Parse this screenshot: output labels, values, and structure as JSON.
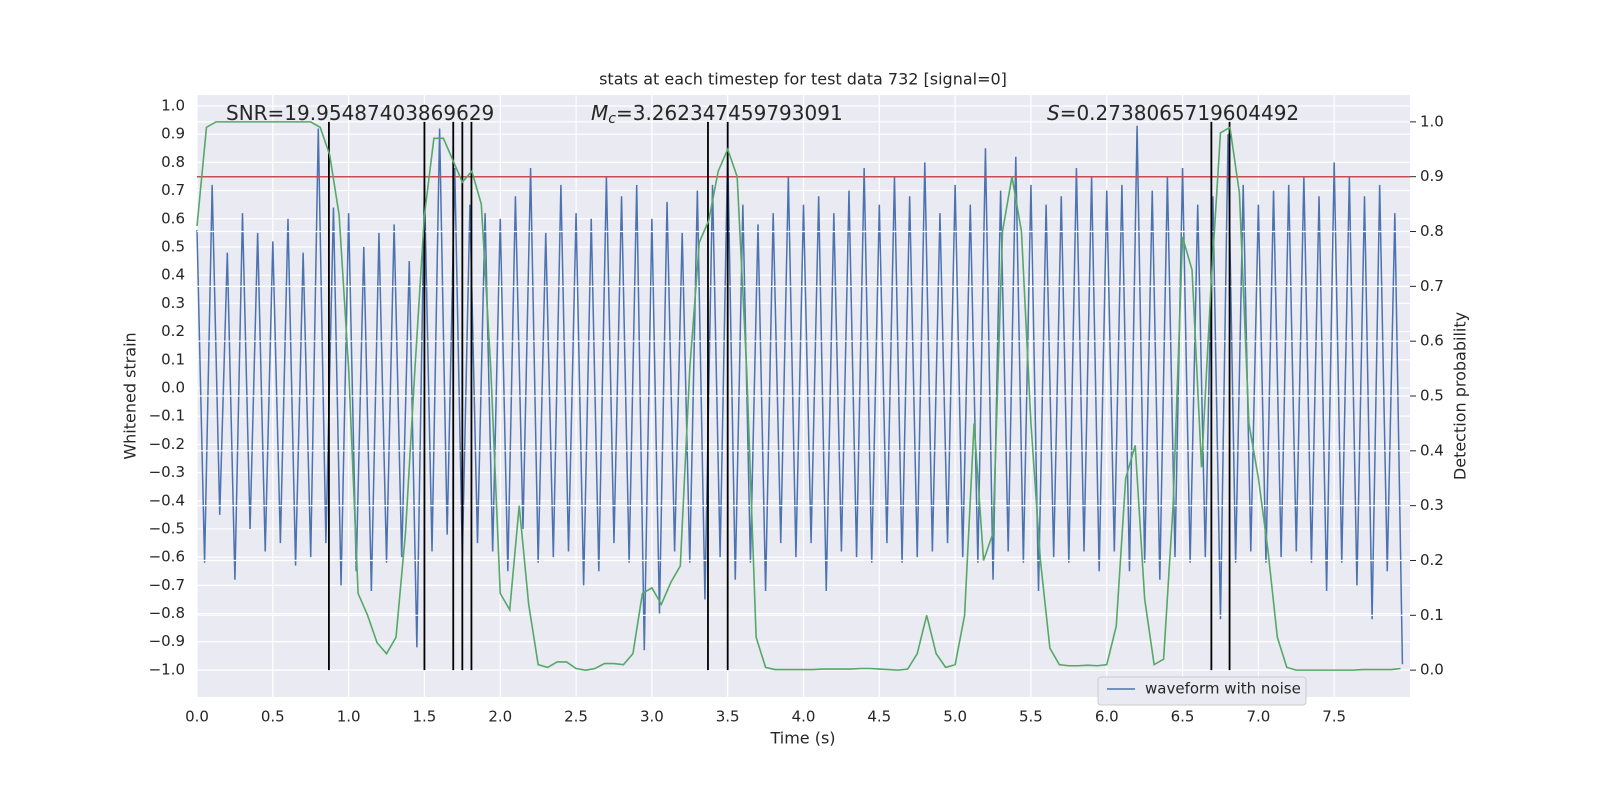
{
  "chart_data": {
    "type": "line",
    "title": "stats at each timestep for test data 732 [signal=0]",
    "xlabel": "Time (s)",
    "ylabel": "Whitened strain",
    "y2label": "Detection probability",
    "annotations": [
      {
        "text": "SNR=19.95487403869629"
      },
      {
        "symbol": "M",
        "subscript": "c",
        "text": "=3.262347459793091"
      },
      {
        "symbol": "S",
        "text": "=0.2738065719604492"
      }
    ],
    "xlim": [
      0,
      8
    ],
    "ylim": [
      -1.096,
      1.039
    ],
    "y2lim": [
      -0.049,
      1.049
    ],
    "grid": true,
    "legend": "lower right",
    "xticks": [
      {
        "value": 0,
        "label": "0.0"
      },
      {
        "value": 0.5,
        "label": "0.5"
      },
      {
        "value": 1,
        "label": "1.0"
      },
      {
        "value": 1.5,
        "label": "1.5"
      },
      {
        "value": 2,
        "label": "2.0"
      },
      {
        "value": 2.5,
        "label": "2.5"
      },
      {
        "value": 3,
        "label": "3.0"
      },
      {
        "value": 3.5,
        "label": "3.5"
      },
      {
        "value": 4,
        "label": "4.0"
      },
      {
        "value": 4.5,
        "label": "4.5"
      },
      {
        "value": 5,
        "label": "5.0"
      },
      {
        "value": 5.5,
        "label": "5.5"
      },
      {
        "value": 6,
        "label": "6.0"
      },
      {
        "value": 6.5,
        "label": "6.5"
      },
      {
        "value": 7,
        "label": "7.0"
      },
      {
        "value": 7.5,
        "label": "7.5"
      }
    ],
    "yticks": [
      {
        "value": -1,
        "label": "−1.0"
      },
      {
        "value": -0.9,
        "label": "−0.9"
      },
      {
        "value": -0.8,
        "label": "−0.8"
      },
      {
        "value": -0.7,
        "label": "−0.7"
      },
      {
        "value": -0.6,
        "label": "−0.6"
      },
      {
        "value": -0.5,
        "label": "−0.5"
      },
      {
        "value": -0.4,
        "label": "−0.4"
      },
      {
        "value": -0.3,
        "label": "−0.3"
      },
      {
        "value": -0.2,
        "label": "−0.2"
      },
      {
        "value": -0.1,
        "label": "−0.1"
      },
      {
        "value": 0,
        "label": "0.0"
      },
      {
        "value": 0.1,
        "label": "0.1"
      },
      {
        "value": 0.2,
        "label": "0.2"
      },
      {
        "value": 0.3,
        "label": "0.3"
      },
      {
        "value": 0.4,
        "label": "0.4"
      },
      {
        "value": 0.5,
        "label": "0.5"
      },
      {
        "value": 0.6,
        "label": "0.6"
      },
      {
        "value": 0.7,
        "label": "0.7"
      },
      {
        "value": 0.8,
        "label": "0.8"
      },
      {
        "value": 0.9,
        "label": "0.9"
      },
      {
        "value": 1,
        "label": "1.0"
      }
    ],
    "y2ticks": [
      {
        "value": 0,
        "label": "0.0"
      },
      {
        "value": 0.1,
        "label": "0.1"
      },
      {
        "value": 0.2,
        "label": "0.2"
      },
      {
        "value": 0.3,
        "label": "0.3"
      },
      {
        "value": 0.4,
        "label": "0.4"
      },
      {
        "value": 0.5,
        "label": "0.5"
      },
      {
        "value": 0.6,
        "label": "0.6"
      },
      {
        "value": 0.7,
        "label": "0.7"
      },
      {
        "value": 0.8,
        "label": "0.8"
      },
      {
        "value": 0.9,
        "label": "0.9"
      },
      {
        "value": 1,
        "label": "1.0"
      }
    ],
    "threshold": {
      "value": 0.9,
      "axis": "y2",
      "color": "#c44e52"
    },
    "detections": {
      "x": [
        0.87,
        1.5,
        1.69,
        1.75,
        1.81,
        3.37,
        3.5,
        6.69,
        6.81
      ],
      "from": 0,
      "to": 1,
      "axis": "y2",
      "color": "#000000"
    },
    "series": [
      {
        "name": "waveform with noise",
        "color": "#4c72b0",
        "x": [
          0,
          0.05,
          0.1,
          0.15,
          0.2,
          0.25,
          0.3,
          0.35,
          0.4,
          0.45,
          0.5,
          0.55,
          0.6,
          0.65,
          0.7,
          0.75,
          0.8,
          0.85,
          0.9,
          0.95,
          1,
          1.05,
          1.1,
          1.15,
          1.2,
          1.25,
          1.3,
          1.35,
          1.4,
          1.45,
          1.5,
          1.55,
          1.6,
          1.65,
          1.7,
          1.75,
          1.8,
          1.85,
          1.9,
          1.95,
          2,
          2.05,
          2.1,
          2.15,
          2.2,
          2.25,
          2.3,
          2.35,
          2.4,
          2.45,
          2.5,
          2.55,
          2.6,
          2.65,
          2.7,
          2.75,
          2.8,
          2.85,
          2.9,
          2.95,
          3,
          3.05,
          3.1,
          3.15,
          3.2,
          3.25,
          3.3,
          3.35,
          3.4,
          3.45,
          3.5,
          3.55,
          3.6,
          3.65,
          3.7,
          3.75,
          3.8,
          3.85,
          3.9,
          3.95,
          4,
          4.05,
          4.1,
          4.15,
          4.2,
          4.25,
          4.3,
          4.35,
          4.4,
          4.45,
          4.5,
          4.55,
          4.6,
          4.65,
          4.7,
          4.75,
          4.8,
          4.85,
          4.9,
          4.95,
          5,
          5.05,
          5.1,
          5.15,
          5.2,
          5.25,
          5.3,
          5.35,
          5.4,
          5.45,
          5.5,
          5.55,
          5.6,
          5.65,
          5.7,
          5.75,
          5.8,
          5.85,
          5.9,
          5.95,
          6,
          6.05,
          6.1,
          6.15,
          6.2,
          6.25,
          6.3,
          6.35,
          6.4,
          6.45,
          6.5,
          6.55,
          6.6,
          6.65,
          6.7,
          6.75,
          6.8,
          6.85,
          6.9,
          6.95,
          7,
          7.05,
          7.1,
          7.15,
          7.2,
          7.25,
          7.3,
          7.35,
          7.4,
          7.45,
          7.5,
          7.55,
          7.6,
          7.65,
          7.7,
          7.75,
          7.8,
          7.85,
          7.9,
          7.95
        ],
        "values": [
          0.56,
          -0.62,
          0.72,
          -0.45,
          0.48,
          -0.68,
          0.62,
          -0.5,
          0.55,
          -0.58,
          0.52,
          -0.55,
          0.6,
          -0.63,
          0.48,
          -0.6,
          0.92,
          -0.55,
          0.64,
          -0.7,
          0.62,
          -0.65,
          0.5,
          -0.72,
          0.55,
          -0.62,
          0.58,
          -0.6,
          0.45,
          -0.92,
          0.72,
          -0.58,
          0.92,
          -0.52,
          0.78,
          -0.6,
          0.65,
          -0.55,
          0.62,
          -0.58,
          0.6,
          -0.65,
          0.68,
          -0.5,
          0.78,
          -0.62,
          0.55,
          -0.6,
          0.72,
          -0.58,
          0.62,
          -0.7,
          0.6,
          -0.65,
          0.75,
          -0.55,
          0.68,
          -0.62,
          0.72,
          -0.93,
          0.6,
          -0.8,
          0.66,
          -0.58,
          0.55,
          -0.62,
          0.7,
          -0.75,
          0.72,
          -0.6,
          0.84,
          -0.68,
          0.65,
          -0.62,
          0.58,
          -0.72,
          0.62,
          -0.55,
          0.75,
          -0.6,
          0.65,
          -0.55,
          0.68,
          -0.72,
          0.62,
          -0.58,
          0.7,
          -0.6,
          0.78,
          -0.62,
          0.65,
          -0.55,
          0.75,
          -0.62,
          0.68,
          -0.6,
          0.8,
          -0.58,
          0.62,
          -0.55,
          0.72,
          -0.6,
          0.65,
          -0.62,
          0.85,
          -0.68,
          0.7,
          -0.58,
          0.82,
          -0.62,
          0.72,
          -0.72,
          0.65,
          -0.6,
          0.68,
          -0.62,
          0.78,
          -0.58,
          0.75,
          -0.65,
          0.7,
          -0.58,
          0.72,
          -0.65,
          0.93,
          -0.62,
          0.7,
          -0.68,
          0.75,
          -0.6,
          0.78,
          -0.62,
          0.65,
          -0.6,
          0.68,
          -0.82,
          0.9,
          -0.62,
          0.72,
          -0.58,
          0.65,
          -0.62,
          0.7,
          -0.6,
          0.72,
          -0.58,
          0.75,
          -0.62,
          0.68,
          -0.72,
          0.8,
          -0.62,
          0.75,
          -0.7,
          0.68,
          -0.82,
          0.72,
          -0.65,
          0.62,
          -0.98
        ]
      },
      {
        "color": "#55a868",
        "axis": "y2",
        "x": [
          0,
          0.0625,
          0.125,
          0.1875,
          0.25,
          0.3125,
          0.375,
          0.4375,
          0.5,
          0.5625,
          0.625,
          0.6875,
          0.75,
          0.8125,
          0.875,
          0.9375,
          1,
          1.0625,
          1.125,
          1.1875,
          1.25,
          1.3125,
          1.375,
          1.4375,
          1.5,
          1.5625,
          1.625,
          1.6875,
          1.75,
          1.8125,
          1.875,
          1.9375,
          2,
          2.0625,
          2.125,
          2.1875,
          2.25,
          2.3125,
          2.375,
          2.4375,
          2.5,
          2.5625,
          2.625,
          2.6875,
          2.75,
          2.8125,
          2.875,
          2.9375,
          3,
          3.0625,
          3.125,
          3.1875,
          3.25,
          3.3125,
          3.375,
          3.4375,
          3.5,
          3.5625,
          3.625,
          3.6875,
          3.75,
          3.8125,
          3.875,
          3.9375,
          4,
          4.0625,
          4.125,
          4.1875,
          4.25,
          4.3125,
          4.375,
          4.4375,
          4.5,
          4.5625,
          4.625,
          4.6875,
          4.75,
          4.8125,
          4.875,
          4.9375,
          5,
          5.0625,
          5.125,
          5.1875,
          5.25,
          5.3125,
          5.375,
          5.4375,
          5.5,
          5.5625,
          5.625,
          5.6875,
          5.75,
          5.8125,
          5.875,
          5.9375,
          6,
          6.0625,
          6.125,
          6.1875,
          6.25,
          6.3125,
          6.375,
          6.4375,
          6.5,
          6.5625,
          6.625,
          6.6875,
          6.75,
          6.8125,
          6.875,
          6.9375,
          7,
          7.0625,
          7.125,
          7.1875,
          7.25,
          7.3125,
          7.375,
          7.4375,
          7.5,
          7.5625,
          7.625,
          7.6875,
          7.75,
          7.8125,
          7.875,
          7.9375
        ],
        "values": [
          0.81,
          0.99,
          1,
          1,
          1,
          1,
          1,
          1,
          1,
          1,
          1,
          1,
          1,
          0.99,
          0.94,
          0.83,
          0.55,
          0.14,
          0.1,
          0.05,
          0.03,
          0.06,
          0.25,
          0.55,
          0.83,
          0.97,
          0.97,
          0.93,
          0.89,
          0.91,
          0.85,
          0.55,
          0.14,
          0.11,
          0.3,
          0.12,
          0.01,
          0.005,
          0.015,
          0.015,
          0.003,
          0,
          0.003,
          0.012,
          0.012,
          0.01,
          0.03,
          0.14,
          0.15,
          0.12,
          0.16,
          0.19,
          0.55,
          0.78,
          0.82,
          0.91,
          0.95,
          0.9,
          0.55,
          0.06,
          0.005,
          0.001,
          0.001,
          0.001,
          0.001,
          0.001,
          0.002,
          0.002,
          0.002,
          0.002,
          0.003,
          0.003,
          0.002,
          0.001,
          0,
          0.002,
          0.03,
          0.1,
          0.03,
          0.005,
          0.01,
          0.1,
          0.45,
          0.2,
          0.25,
          0.8,
          0.9,
          0.8,
          0.45,
          0.2,
          0.04,
          0.01,
          0.008,
          0.008,
          0.009,
          0.008,
          0.01,
          0.08,
          0.35,
          0.41,
          0.13,
          0.01,
          0.02,
          0.3,
          0.79,
          0.73,
          0.37,
          0.7,
          0.98,
          0.99,
          0.87,
          0.45,
          0.35,
          0.22,
          0.06,
          0.005,
          0,
          0,
          0,
          0,
          0,
          0,
          0,
          0.001,
          0.001,
          0.001,
          0.001,
          0.003
        ]
      }
    ]
  }
}
